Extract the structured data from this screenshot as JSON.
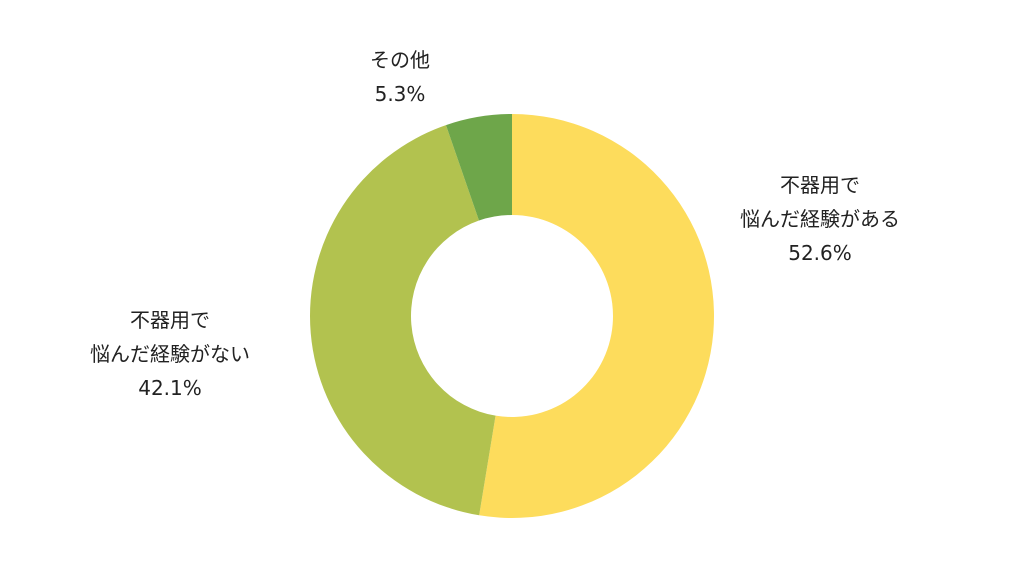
{
  "chart_data": {
    "type": "donut",
    "categories": [
      "不器用で\n悩んだ経験がある",
      "不器用で\n悩んだ経験がない",
      "その他"
    ],
    "values": [
      52.6,
      42.1,
      5.3
    ],
    "value_labels": [
      "52.6%",
      "42.1%",
      "5.3%"
    ],
    "colors": [
      "#fddc5c",
      "#b2c24f",
      "#6ea64a"
    ]
  }
}
